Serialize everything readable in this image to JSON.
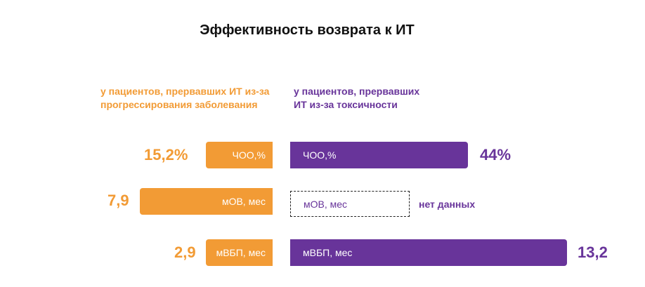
{
  "title": "Эффективность возврата к ИТ",
  "headers": {
    "left": [
      "у пациентов,  прервавших ИТ из-за",
      "прогрессирования заболевания"
    ],
    "right": [
      "у пациентов, прервавших",
      "ИТ из-за токсичности"
    ]
  },
  "colors": {
    "progression": "#F29B35",
    "toxicity": "#68349A"
  },
  "rows": [
    {
      "label": "ЧОО,%",
      "left_value": "15,2%",
      "right_value": "44%"
    },
    {
      "label": "мОВ, мес",
      "left_value": "7,9",
      "right_value": "нет данных"
    },
    {
      "label": "мВБП, мес",
      "left_value": "2,9",
      "right_value": "13,2"
    }
  ],
  "chart_data": {
    "type": "bar",
    "categories": [
      "ЧОО,%",
      "мОВ, мес",
      "мВБП, мес"
    ],
    "series": [
      {
        "name": "у пациентов, прервавших ИТ из-за прогрессирования заболевания",
        "values": [
          15.2,
          7.9,
          2.9
        ]
      },
      {
        "name": "у пациентов, прервавших ИТ из-за токсичности",
        "values": [
          44,
          null,
          13.2
        ]
      }
    ]
  }
}
